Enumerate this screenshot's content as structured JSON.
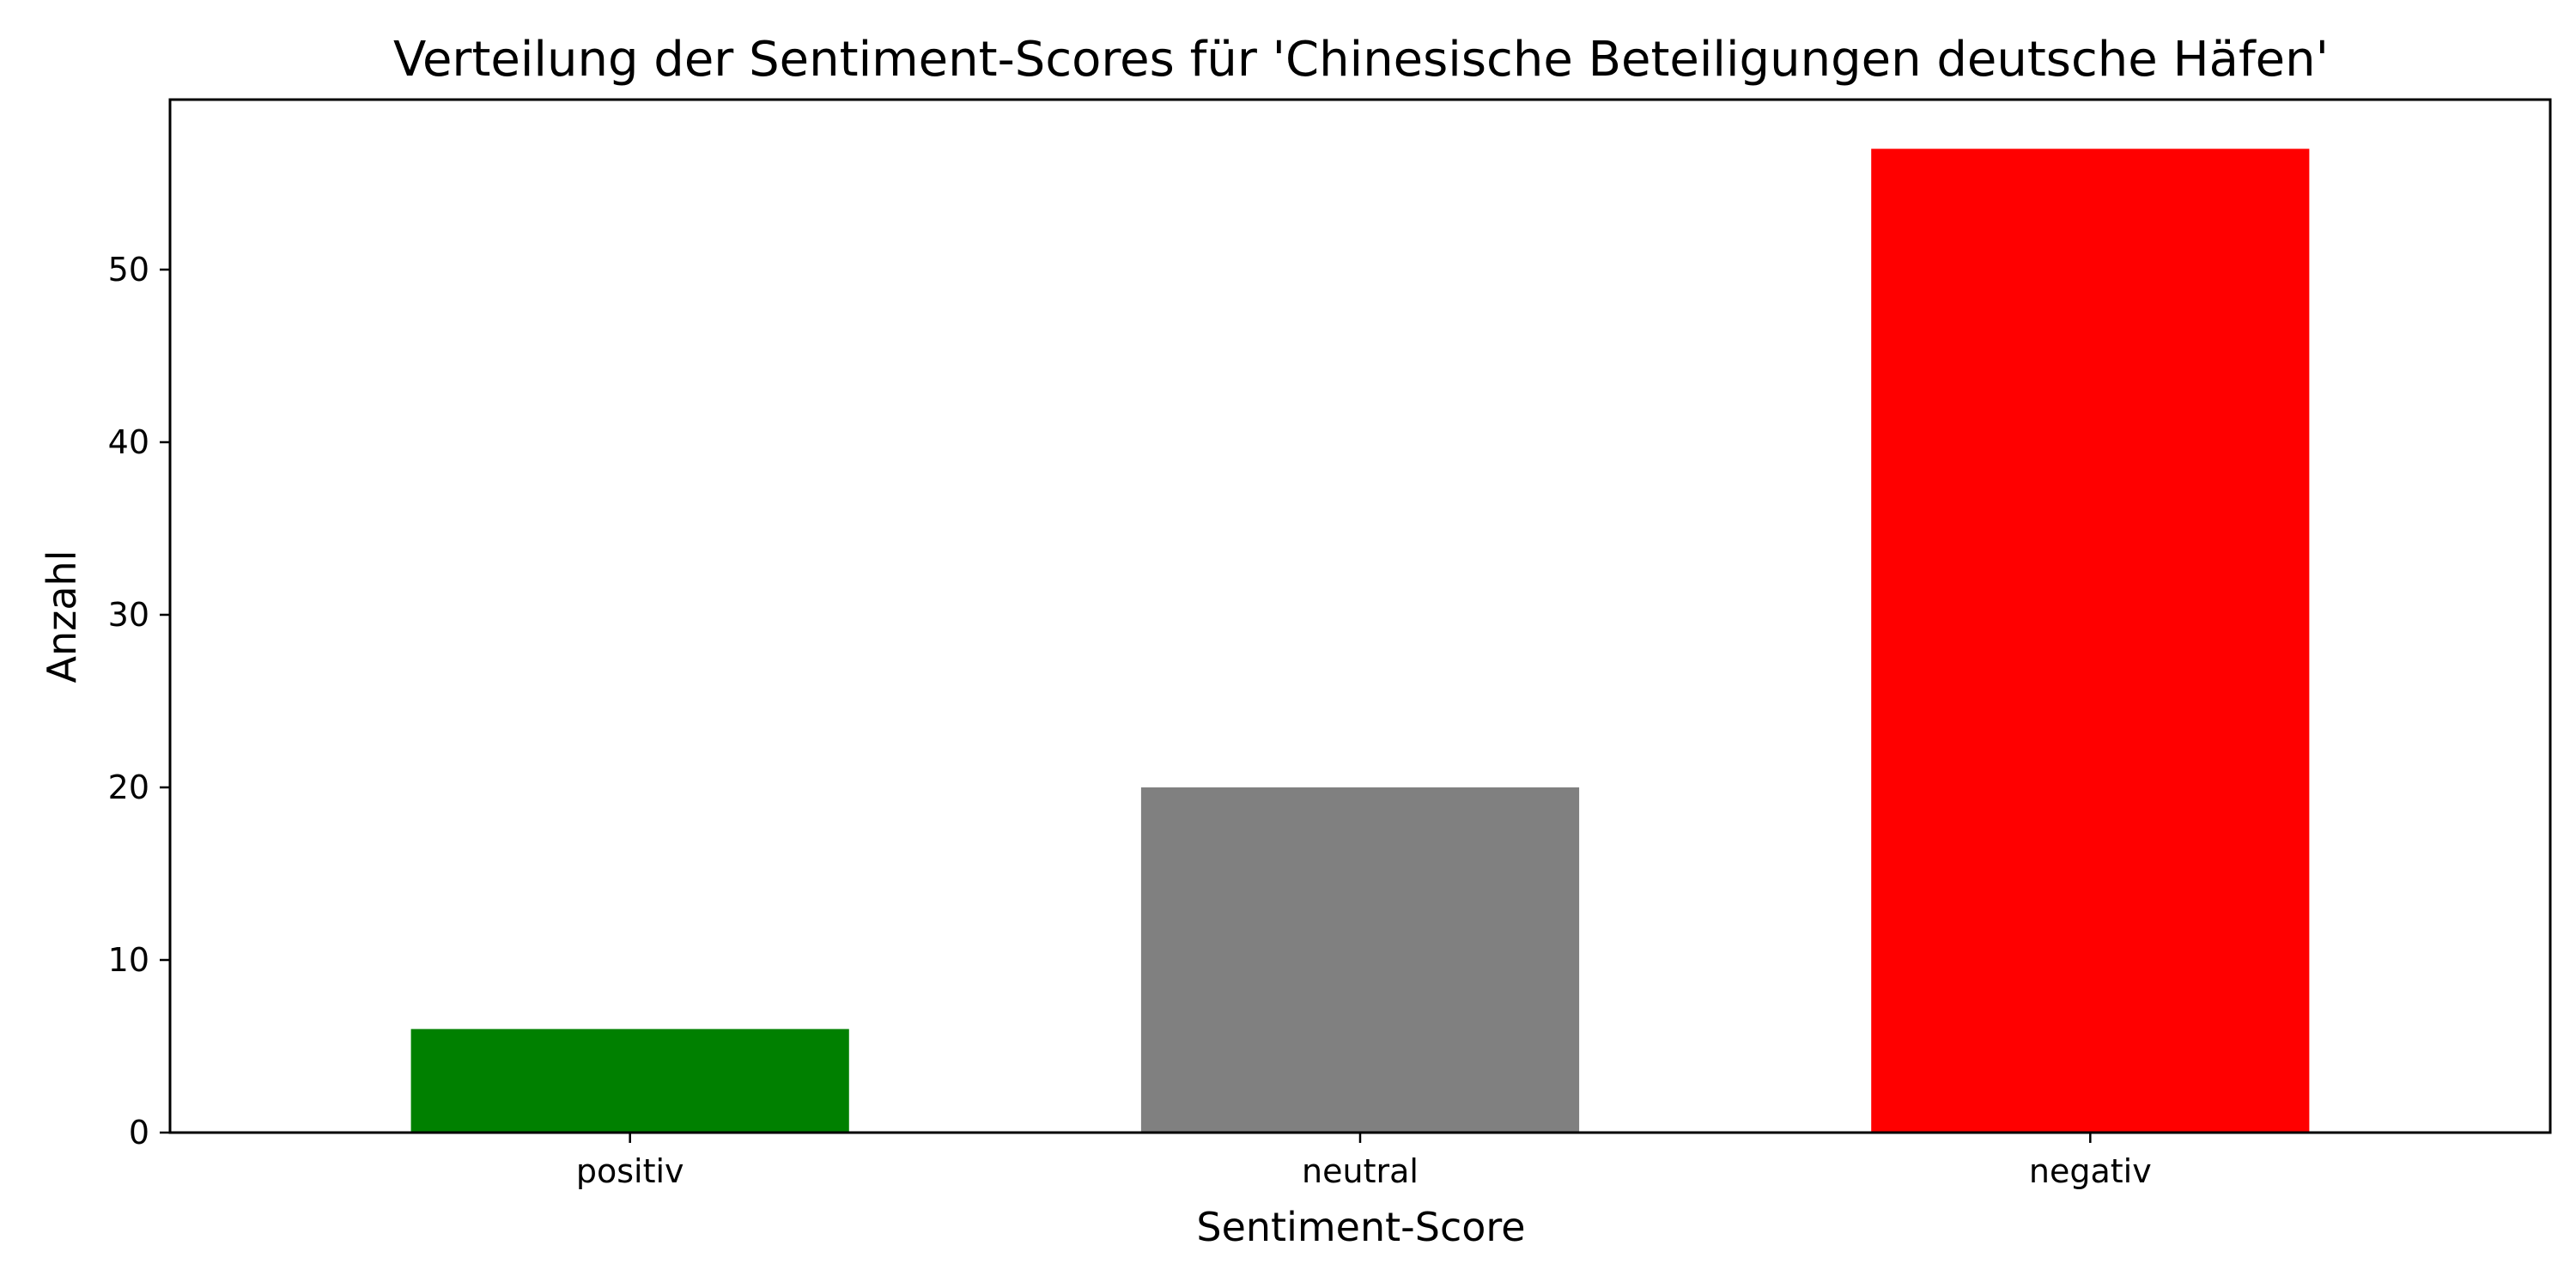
{
  "chart_data": {
    "type": "bar",
    "title": "Verteilung der Sentiment-Scores für 'Chinesische Beteiligungen deutsche Häfen'",
    "xlabel": "Sentiment-Score",
    "ylabel": "Anzahl",
    "categories": [
      "positiv",
      "neutral",
      "negativ"
    ],
    "values": [
      6,
      20,
      57
    ],
    "colors": [
      "#008000",
      "#808080",
      "#ff0000"
    ],
    "ylim": [
      0,
      59.85
    ],
    "yticks": [
      0,
      10,
      20,
      30,
      40,
      50
    ],
    "grid": false,
    "legend": "none",
    "baseline_style": "dashed",
    "baseline_value": 0
  }
}
